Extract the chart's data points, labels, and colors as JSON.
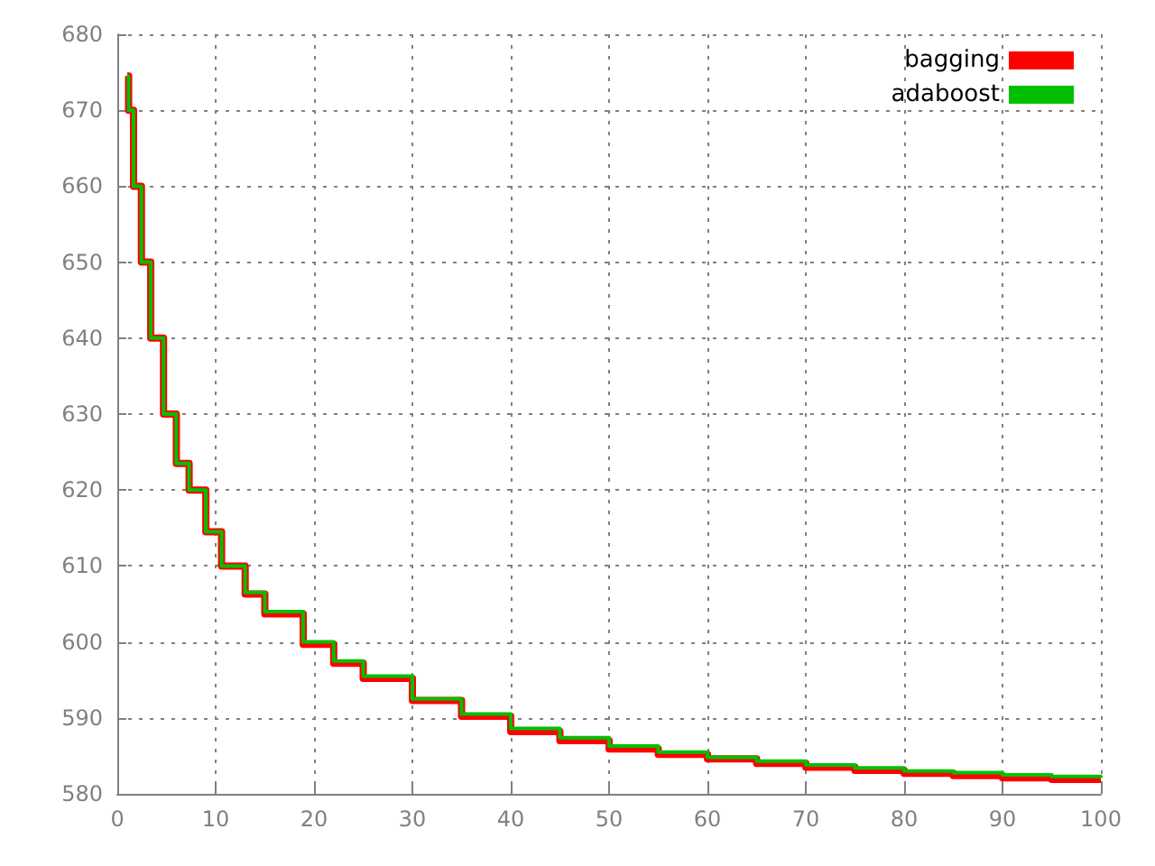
{
  "chart_data": {
    "type": "step",
    "x": [
      1,
      1.15,
      1.65,
      2.45,
      3.4,
      4.7,
      6,
      7.3,
      9,
      10.6,
      13,
      15,
      18.9,
      22,
      25,
      30,
      35,
      40,
      45,
      50,
      55,
      60,
      65,
      70,
      75,
      80,
      85,
      90,
      95,
      100
    ],
    "series": [
      {
        "name": "bagging",
        "color": "#ff0000",
        "values": [
          674.5,
          670,
          660,
          650,
          640,
          630,
          623.5,
          620,
          614.5,
          610,
          606.3,
          603.7,
          599.7,
          597.2,
          595.2,
          592.3,
          590.2,
          588.2,
          587.0,
          585.9,
          585.2,
          584.6,
          584.0,
          583.5,
          583.1,
          582.7,
          582.4,
          582.1,
          581.9,
          581.8
        ]
      },
      {
        "name": "adaboost",
        "color": "#00c000",
        "values": [
          674.5,
          670,
          660,
          650,
          640,
          630,
          623.5,
          620,
          614.5,
          610,
          606.5,
          604,
          600,
          597.5,
          595.5,
          592.5,
          590.5,
          588.6,
          587.4,
          586.3,
          585.5,
          584.8,
          584.3,
          583.8,
          583.4,
          583.0,
          582.8,
          582.5,
          582.3,
          582.1
        ]
      }
    ],
    "xlim": [
      0,
      100
    ],
    "xticks": [
      0,
      10,
      20,
      30,
      40,
      50,
      60,
      70,
      80,
      90,
      100
    ],
    "ylim": [
      580,
      680
    ],
    "yticks": [
      580,
      590,
      600,
      610,
      620,
      630,
      640,
      650,
      660,
      670,
      680
    ],
    "grid": true,
    "legend": "top right",
    "marker": "none",
    "line_style": "solid"
  }
}
